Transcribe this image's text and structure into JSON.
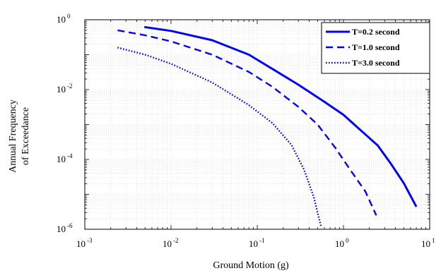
{
  "chart_data": {
    "type": "line",
    "xlabel": "Ground Motion (g)",
    "ylabel_lines": [
      "Annual Frequency",
      "of Exceedance"
    ],
    "xscale": "log",
    "yscale": "log",
    "xlim": [
      0.001,
      10
    ],
    "ylim": [
      1e-06,
      1
    ],
    "x_ticks": [
      {
        "base": "10",
        "exp": "-3",
        "value": 0.001
      },
      {
        "base": "10",
        "exp": "-2",
        "value": 0.01
      },
      {
        "base": "10",
        "exp": "-1",
        "value": 0.1
      },
      {
        "base": "10",
        "exp": "0",
        "value": 1
      },
      {
        "base": "10",
        "exp": "1",
        "value": 10
      }
    ],
    "y_ticks": [
      {
        "base": "10",
        "exp": "0",
        "value": 1
      },
      {
        "base": "10",
        "exp": "-2",
        "value": 0.01
      },
      {
        "base": "10",
        "exp": "-4",
        "value": 0.0001
      },
      {
        "base": "10",
        "exp": "-6",
        "value": 1e-06
      }
    ],
    "grid": true,
    "legend_position": "top-right",
    "series": [
      {
        "name": "T=0.2 second",
        "style": "solid",
        "color": "#0000ff",
        "points": [
          [
            0.0049,
            0.62
          ],
          [
            0.01,
            0.48
          ],
          [
            0.03,
            0.26
          ],
          [
            0.08,
            0.1
          ],
          [
            0.15,
            0.039
          ],
          [
            0.3,
            0.0138
          ],
          [
            0.6,
            0.0045
          ],
          [
            1.0,
            0.0019
          ],
          [
            1.5,
            0.00077
          ],
          [
            2.5,
            0.00025
          ],
          [
            3.5,
            7.9e-05
          ],
          [
            5.0,
            2.1e-05
          ],
          [
            7.0,
            4.4e-06
          ]
        ]
      },
      {
        "name": "T=1.0 second",
        "style": "dashed",
        "color": "#0000ff",
        "points": [
          [
            0.0024,
            0.5
          ],
          [
            0.005,
            0.36
          ],
          [
            0.01,
            0.24
          ],
          [
            0.03,
            0.1
          ],
          [
            0.08,
            0.032
          ],
          [
            0.15,
            0.012
          ],
          [
            0.3,
            0.0032
          ],
          [
            0.5,
            0.001
          ],
          [
            0.8,
            0.00022
          ],
          [
            1.2,
            5e-05
          ],
          [
            1.8,
            1.2e-05
          ],
          [
            2.4,
            2.5e-06
          ]
        ]
      },
      {
        "name": "T=3.0 second",
        "style": "dotted",
        "color": "#0000ff",
        "points": [
          [
            0.0024,
            0.16
          ],
          [
            0.005,
            0.1
          ],
          [
            0.01,
            0.055
          ],
          [
            0.03,
            0.016
          ],
          [
            0.08,
            0.0036
          ],
          [
            0.15,
            0.0011
          ],
          [
            0.25,
            0.00026
          ],
          [
            0.35,
            5e-05
          ],
          [
            0.45,
            8.7e-06
          ],
          [
            0.55,
            1.2e-06
          ]
        ]
      }
    ]
  }
}
